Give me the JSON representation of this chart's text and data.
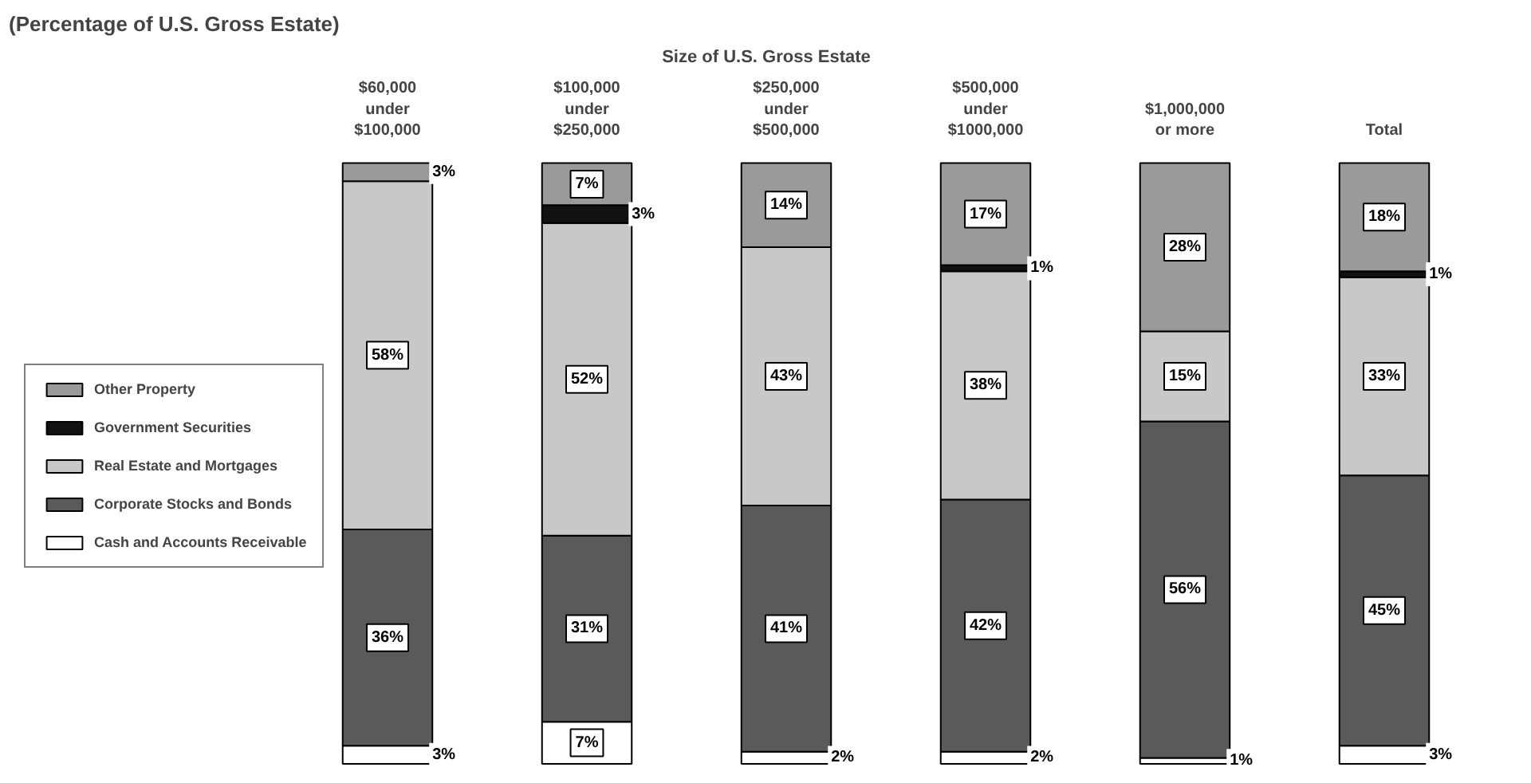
{
  "chart_data": {
    "type": "bar",
    "stacked": true,
    "title": "(Percentage of U.S. Gross Estate)",
    "xlabel": "Size of U.S. Gross Estate",
    "categories": [
      "$60,000\nunder\n$100,000",
      "$100,000\nunder\n$250,000",
      "$250,000\nunder\n$500,000",
      "$500,000\nunder\n$1000,000",
      "$1,000,000\nor more",
      "Total"
    ],
    "series": [
      {
        "name": "Cash and Accounts Receivable",
        "color": "#ffffff",
        "values": [
          3,
          7,
          2,
          2,
          1,
          3
        ],
        "value_labels": [
          "3%",
          "7%",
          "2%",
          "2%",
          "1%",
          "3%"
        ]
      },
      {
        "name": "Corporate Stocks and Bonds",
        "color": "#5a5a5a",
        "values": [
          36,
          31,
          41,
          42,
          56,
          45
        ],
        "value_labels": [
          "36%",
          "31%",
          "41%",
          "42%",
          "56%",
          "45%"
        ]
      },
      {
        "name": "Real Estate and Mortgages",
        "color": "#c8c8c8",
        "values": [
          58,
          52,
          43,
          38,
          15,
          33
        ],
        "value_labels": [
          "58%",
          "52%",
          "43%",
          "38%",
          "15%",
          "33%"
        ]
      },
      {
        "name": "Government Securities",
        "color": "#111111",
        "values": [
          null,
          3,
          null,
          1,
          null,
          1
        ],
        "value_labels": [
          null,
          "3%",
          null,
          "1%",
          null,
          "1%"
        ]
      },
      {
        "name": "Other Property",
        "color": "#9a9a9a",
        "values": [
          3,
          7,
          14,
          17,
          28,
          18
        ],
        "value_labels": [
          "3%",
          "7%",
          "14%",
          "17%",
          "28%",
          "18%"
        ]
      }
    ],
    "legend": "left",
    "grid": false
  }
}
